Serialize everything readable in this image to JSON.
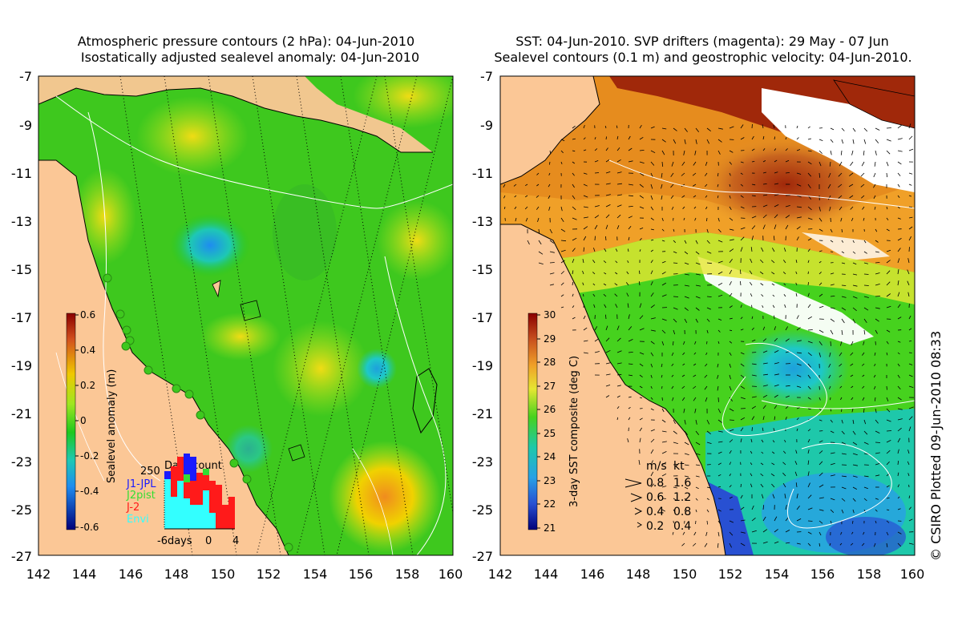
{
  "left_panel": {
    "title_line1": "Atmospheric pressure contours (2 hPa): 04-Jun-2010",
    "title_line2": "Isostatically adjusted sealevel anomaly: 04-Jun-2010",
    "colorbar": {
      "label": "Sealevel anomaly (m)",
      "ticks": [
        "0.6",
        "0.4",
        "0.2",
        "0",
        "-0.2",
        "-0.4",
        "-0.6"
      ],
      "range": [
        -0.6,
        0.6
      ]
    },
    "datacount": {
      "title": "Data count",
      "max_label": "250",
      "legend": [
        {
          "name": "J1-JPL",
          "color": "#1a1aff"
        },
        {
          "name": "J2pist",
          "color": "#33dd33"
        },
        {
          "name": "J-2",
          "color": "#ff1a1a"
        },
        {
          "name": "Envi",
          "color": "#33ffff"
        }
      ],
      "x_ticks": [
        "-6days",
        "0",
        "4"
      ]
    }
  },
  "right_panel": {
    "title_line1": "SST: 04-Jun-2010. SVP drifters (magenta): 29 May - 07 Jun",
    "title_line2": "Sealevel contours (0.1 m) and geostrophic velocity: 04-Jun-2010.",
    "colorbar": {
      "label": "3-day SST composite (deg C)",
      "ticks": [
        "30",
        "29",
        "28",
        "27",
        "26",
        "25",
        "24",
        "23",
        "22",
        "21"
      ],
      "range": [
        21,
        30
      ]
    },
    "velocity_legend": {
      "header_ms": "m/s",
      "header_kt": "kt",
      "rows": [
        {
          "ms": "0.8",
          "kt": "1.6"
        },
        {
          "ms": "0.6",
          "kt": "1.2"
        },
        {
          "ms": "0.4",
          "kt": "0.8"
        },
        {
          "ms": "0.2",
          "kt": "0.4"
        }
      ]
    }
  },
  "axes": {
    "y_ticks": [
      "-7",
      "-9",
      "-11",
      "-13",
      "-15",
      "-17",
      "-19",
      "-21",
      "-23",
      "-25",
      "-27"
    ],
    "x_ticks": [
      "142",
      "144",
      "146",
      "148",
      "150",
      "152",
      "154",
      "156",
      "158",
      "160"
    ]
  },
  "credit": "© CSIRO Plotted 09-Jun-2010 08:33",
  "colors": {
    "land": "#fbc796",
    "ocean_green": "#3ec81e",
    "sst_warm": "#c85a14",
    "sst_cool": "#1ec8a0"
  }
}
